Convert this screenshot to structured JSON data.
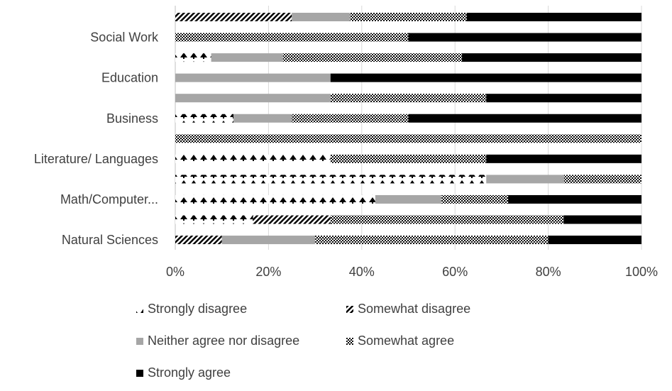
{
  "chart_data": {
    "type": "bar",
    "orientation": "horizontal",
    "stacked": "percent",
    "title": "",
    "xlabel": "",
    "ylabel": "",
    "xlim": [
      0,
      100
    ],
    "x_ticks": [
      "0%",
      "20%",
      "40%",
      "60%",
      "80%",
      "100%"
    ],
    "grid": true,
    "legend_position": "bottom",
    "category_labels": [
      "Social Work",
      "Education",
      "Business",
      "Literature/ Languages",
      "Math/Computer...",
      "Natural Sciences"
    ],
    "bars_top_to_bottom": [
      {
        "label": "",
        "values": [
          0,
          25,
          12.5,
          25,
          37.5
        ]
      },
      {
        "label": "Social Work",
        "values": [
          0,
          0,
          0,
          50,
          50
        ]
      },
      {
        "label": "",
        "values": [
          7.7,
          0,
          15.4,
          38.4,
          38.5
        ]
      },
      {
        "label": "Education",
        "values": [
          0,
          0,
          33.3,
          0,
          66.7
        ]
      },
      {
        "label": "",
        "values": [
          0,
          0,
          33.3,
          33.4,
          33.3
        ]
      },
      {
        "label": "Business",
        "values": [
          12.5,
          0,
          12.5,
          25,
          50
        ]
      },
      {
        "label": "",
        "values": [
          0,
          0,
          0,
          100,
          0
        ]
      },
      {
        "label": "Literature/ Languages",
        "values": [
          33.3,
          0,
          0,
          33.4,
          33.3
        ]
      },
      {
        "label": "",
        "values": [
          66.7,
          0,
          16.7,
          16.6,
          0
        ]
      },
      {
        "label": "Math/Computer...",
        "values": [
          42.9,
          0,
          14.2,
          14.3,
          28.6
        ]
      },
      {
        "label": "",
        "values": [
          16.7,
          16.6,
          0,
          50,
          16.7
        ]
      },
      {
        "label": "Natural Sciences",
        "values": [
          0,
          10,
          20,
          50,
          20
        ]
      }
    ],
    "series": [
      {
        "name": "Strongly disagree",
        "color": "#000000",
        "pattern": "symbols"
      },
      {
        "name": "Somewhat disagree",
        "color": "#000000",
        "pattern": "diagonal-stripes"
      },
      {
        "name": "Neither agree nor disagree",
        "color": "#a6a6a6",
        "pattern": "solid"
      },
      {
        "name": "Somewhat agree",
        "color": "#000000",
        "pattern": "checker"
      },
      {
        "name": "Strongly agree",
        "color": "#000000",
        "pattern": "solid"
      }
    ]
  }
}
